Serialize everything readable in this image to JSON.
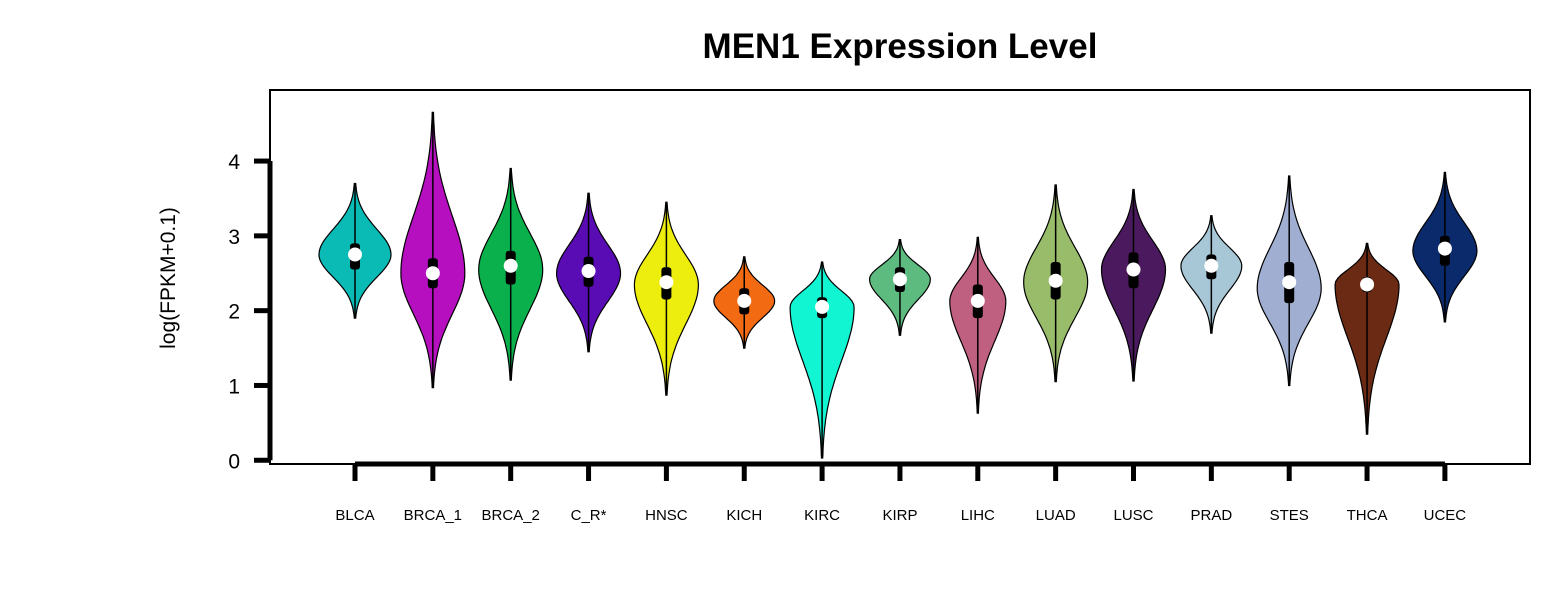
{
  "chart_data": {
    "type": "violin",
    "title": "MEN1 Expression Level",
    "xlabel": "",
    "ylabel": "log(FPKM+0.1)",
    "ylim": [
      -0.05,
      4.95
    ],
    "yticks": [
      0,
      1,
      2,
      3,
      4
    ],
    "grid": false,
    "legend": "none",
    "categories": [
      "BLCA",
      "BRCA_1",
      "BRCA_2",
      "C_R*",
      "HNSC",
      "KICH",
      "KIRC",
      "KIRP",
      "LIHC",
      "LUAD",
      "LUSC",
      "PRAD",
      "STES",
      "THCA",
      "UCEC"
    ],
    "series": [
      {
        "min": 1.9,
        "max": 3.7,
        "q1": 2.55,
        "median": 2.75,
        "q3": 2.9,
        "mode": 2.75,
        "width": 0.45,
        "color": "#0ABAB5"
      },
      {
        "min": 0.97,
        "max": 4.65,
        "q1": 2.3,
        "median": 2.5,
        "q3": 2.7,
        "mode": 2.5,
        "width": 0.4,
        "color": "#B50FBF"
      },
      {
        "min": 1.07,
        "max": 3.9,
        "q1": 2.35,
        "median": 2.6,
        "q3": 2.8,
        "mode": 2.55,
        "width": 0.4,
        "color": "#0AB04B"
      },
      {
        "min": 1.45,
        "max": 3.57,
        "q1": 2.32,
        "median": 2.53,
        "q3": 2.72,
        "mode": 2.5,
        "width": 0.4,
        "color": "#5A0CB4"
      },
      {
        "min": 0.87,
        "max": 3.45,
        "q1": 2.15,
        "median": 2.38,
        "q3": 2.58,
        "mode": 2.35,
        "width": 0.4,
        "color": "#EDED0E"
      },
      {
        "min": 1.5,
        "max": 2.72,
        "q1": 1.95,
        "median": 2.13,
        "q3": 2.3,
        "mode": 2.13,
        "width": 0.38,
        "color": "#F26A12"
      },
      {
        "min": 0.03,
        "max": 2.65,
        "q1": 1.9,
        "median": 2.05,
        "q3": 2.18,
        "mode": 2.05,
        "width": 0.4,
        "color": "#12F5D3"
      },
      {
        "min": 1.67,
        "max": 2.95,
        "q1": 2.25,
        "median": 2.42,
        "q3": 2.58,
        "mode": 2.42,
        "width": 0.38,
        "color": "#5DBB80"
      },
      {
        "min": 0.63,
        "max": 2.98,
        "q1": 1.9,
        "median": 2.13,
        "q3": 2.35,
        "mode": 2.13,
        "width": 0.35,
        "color": "#C06080"
      },
      {
        "min": 1.05,
        "max": 3.68,
        "q1": 2.15,
        "median": 2.4,
        "q3": 2.65,
        "mode": 2.38,
        "width": 0.4,
        "color": "#98BC6A"
      },
      {
        "min": 1.06,
        "max": 3.62,
        "q1": 2.3,
        "median": 2.55,
        "q3": 2.78,
        "mode": 2.55,
        "width": 0.4,
        "color": "#4B1A5E"
      },
      {
        "min": 1.7,
        "max": 3.27,
        "q1": 2.42,
        "median": 2.6,
        "q3": 2.75,
        "mode": 2.6,
        "width": 0.38,
        "color": "#A7C7D7"
      },
      {
        "min": 1.0,
        "max": 3.8,
        "q1": 2.1,
        "median": 2.38,
        "q3": 2.65,
        "mode": 2.3,
        "width": 0.4,
        "color": "#A0AED2"
      },
      {
        "min": 0.35,
        "max": 2.9,
        "q1": 2.25,
        "median": 2.35,
        "q3": 2.45,
        "mode": 2.35,
        "width": 0.4,
        "color": "#6B2A14"
      },
      {
        "min": 1.85,
        "max": 3.85,
        "q1": 2.6,
        "median": 2.83,
        "q3": 3.0,
        "mode": 2.8,
        "width": 0.4,
        "color": "#0A2A6B"
      }
    ]
  }
}
